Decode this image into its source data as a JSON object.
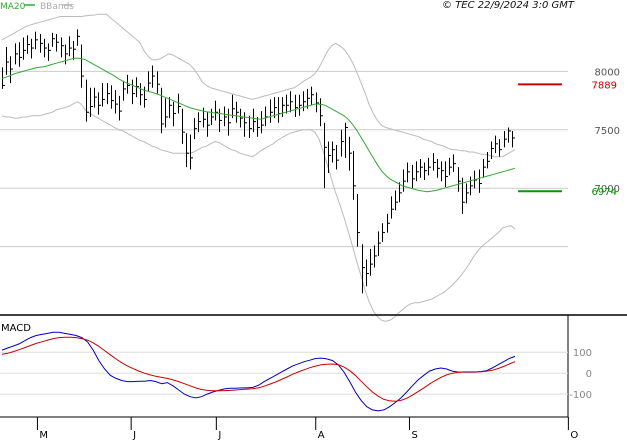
{
  "credit": "© TEC 22/9/2024 3:0 GMT",
  "legend": {
    "ma_label": "MA20",
    "ma_color": "#33aa33",
    "bb_label": "BBands",
    "bb_color": "#bbbbbb"
  },
  "chart_data": [
    {
      "type": "bar",
      "subtype": "ohlc",
      "name": "price",
      "ylim": [
        6000,
        8500
      ],
      "y_ticks": [
        {
          "value": 8000,
          "label": "8000"
        },
        {
          "value": 7500,
          "label": "7500"
        },
        {
          "value": 7000,
          "label": "7000"
        }
      ],
      "x_ticks": [
        {
          "x": 0.065,
          "label": "M"
        },
        {
          "x": 0.23,
          "label": "J"
        },
        {
          "x": 0.38,
          "label": "J"
        },
        {
          "x": 0.555,
          "label": "A"
        },
        {
          "x": 0.72,
          "label": "S"
        },
        {
          "x": 0.91,
          "label": "O"
        }
      ],
      "price_bars": [
        [
          7880,
          8035,
          7850
        ],
        [
          8080,
          8210,
          7970
        ],
        [
          8020,
          8130,
          7900
        ],
        [
          8150,
          8240,
          8060
        ],
        [
          8120,
          8250,
          8040
        ],
        [
          8180,
          8290,
          8100
        ],
        [
          8230,
          8310,
          8150
        ],
        [
          8200,
          8280,
          8110
        ],
        [
          8270,
          8340,
          8190
        ],
        [
          8240,
          8320,
          8160
        ],
        [
          8200,
          8280,
          8120
        ],
        [
          8180,
          8240,
          8090
        ],
        [
          8280,
          8330,
          8210
        ],
        [
          8250,
          8320,
          8170
        ],
        [
          8220,
          8290,
          8120
        ],
        [
          8150,
          8230,
          8060
        ],
        [
          8200,
          8300,
          8130
        ],
        [
          8190,
          8260,
          8100
        ],
        [
          8300,
          8360,
          8220
        ],
        [
          7960,
          8230,
          7860
        ],
        [
          7650,
          7930,
          7570
        ],
        [
          7700,
          7860,
          7610
        ],
        [
          7780,
          7860,
          7690
        ],
        [
          7710,
          7820,
          7630
        ],
        [
          7760,
          7900,
          7700
        ],
        [
          7810,
          7900,
          7720
        ],
        [
          7750,
          7880,
          7680
        ],
        [
          7720,
          7840,
          7640
        ],
        [
          7660,
          7790,
          7580
        ],
        [
          7850,
          7920,
          7750
        ],
        [
          7880,
          7970,
          7810
        ],
        [
          7810,
          7930,
          7720
        ],
        [
          7870,
          7950,
          7780
        ],
        [
          7800,
          7900,
          7710
        ],
        [
          7760,
          7870,
          7690
        ],
        [
          7900,
          8000,
          7830
        ],
        [
          7960,
          8050,
          7860
        ],
        [
          7890,
          8000,
          7810
        ],
        [
          7550,
          7860,
          7470
        ],
        [
          7610,
          7770,
          7520
        ],
        [
          7710,
          7780,
          7600
        ],
        [
          7640,
          7740,
          7530
        ],
        [
          7700,
          7810,
          7640
        ],
        [
          7480,
          7680,
          7380
        ],
        [
          7300,
          7470,
          7180
        ],
        [
          7260,
          7460,
          7160
        ],
        [
          7510,
          7600,
          7420
        ],
        [
          7570,
          7650,
          7480
        ],
        [
          7590,
          7690,
          7520
        ],
        [
          7540,
          7650,
          7440
        ],
        [
          7610,
          7680,
          7540
        ],
        [
          7650,
          7750,
          7580
        ],
        [
          7580,
          7680,
          7480
        ],
        [
          7610,
          7700,
          7530
        ],
        [
          7560,
          7680,
          7450
        ],
        [
          7680,
          7800,
          7600
        ],
        [
          7650,
          7740,
          7560
        ],
        [
          7600,
          7680,
          7520
        ],
        [
          7560,
          7650,
          7440
        ],
        [
          7510,
          7620,
          7430
        ],
        [
          7570,
          7680,
          7480
        ],
        [
          7520,
          7610,
          7440
        ],
        [
          7540,
          7660,
          7470
        ],
        [
          7610,
          7700,
          7530
        ],
        [
          7650,
          7760,
          7560
        ],
        [
          7690,
          7780,
          7600
        ],
        [
          7640,
          7780,
          7560
        ],
        [
          7710,
          7780,
          7610
        ],
        [
          7710,
          7800,
          7640
        ],
        [
          7740,
          7830,
          7650
        ],
        [
          7690,
          7800,
          7610
        ],
        [
          7710,
          7800,
          7620
        ],
        [
          7740,
          7830,
          7660
        ],
        [
          7770,
          7850,
          7680
        ],
        [
          7800,
          7870,
          7710
        ],
        [
          7730,
          7820,
          7650
        ],
        [
          7620,
          7770,
          7530
        ],
        [
          7350,
          7560,
          7000
        ],
        [
          7280,
          7400,
          7130
        ],
        [
          7330,
          7400,
          7220
        ],
        [
          7240,
          7370,
          7160
        ],
        [
          7400,
          7500,
          7270
        ],
        [
          7520,
          7560,
          7260
        ],
        [
          7300,
          7440,
          7150
        ],
        [
          7020,
          7320,
          6900
        ],
        [
          6620,
          6950,
          6500
        ],
        [
          6320,
          6520,
          6100
        ],
        [
          6270,
          6390,
          6160
        ],
        [
          6350,
          6480,
          6250
        ],
        [
          6420,
          6510,
          6320
        ],
        [
          6530,
          6630,
          6420
        ],
        [
          6620,
          6700,
          6540
        ],
        [
          6700,
          6780,
          6620
        ],
        [
          6820,
          6930,
          6740
        ],
        [
          6880,
          6980,
          6810
        ],
        [
          6960,
          7050,
          6880
        ],
        [
          7060,
          7160,
          6970
        ],
        [
          7140,
          7220,
          7050
        ],
        [
          7080,
          7200,
          7000
        ],
        [
          7140,
          7230,
          7060
        ],
        [
          7180,
          7250,
          7090
        ],
        [
          7150,
          7220,
          7070
        ],
        [
          7180,
          7260,
          7110
        ],
        [
          7220,
          7300,
          7150
        ],
        [
          7170,
          7250,
          7090
        ],
        [
          7150,
          7230,
          7060
        ],
        [
          7100,
          7230,
          7010
        ],
        [
          7180,
          7260,
          7110
        ],
        [
          7210,
          7290,
          7140
        ],
        [
          7060,
          7180,
          6970
        ],
        [
          6880,
          7090,
          6780
        ],
        [
          6960,
          7040,
          6870
        ],
        [
          7020,
          7100,
          6940
        ],
        [
          7070,
          7150,
          7000
        ],
        [
          7040,
          7160,
          6960
        ],
        [
          7180,
          7250,
          7090
        ],
        [
          7230,
          7310,
          7170
        ],
        [
          7340,
          7400,
          7250
        ],
        [
          7380,
          7450,
          7300
        ],
        [
          7330,
          7420,
          7270
        ],
        [
          7420,
          7490,
          7350
        ],
        [
          7490,
          7520,
          7390
        ],
        [
          7430,
          7490,
          7350
        ]
      ],
      "ma20": [
        7940,
        7950,
        7965,
        7980,
        7990,
        8000,
        8010,
        8020,
        8030,
        8035,
        8040,
        8050,
        8060,
        8070,
        8080,
        8090,
        8100,
        8110,
        8115,
        8110,
        8100,
        8080,
        8060,
        8040,
        8020,
        8000,
        7980,
        7960,
        7935,
        7915,
        7900,
        7885,
        7870,
        7855,
        7840,
        7830,
        7820,
        7810,
        7795,
        7780,
        7765,
        7750,
        7735,
        7720,
        7705,
        7690,
        7680,
        7670,
        7662,
        7655,
        7650,
        7645,
        7640,
        7635,
        7630,
        7625,
        7620,
        7615,
        7610,
        7605,
        7600,
        7595,
        7590,
        7600,
        7610,
        7620,
        7630,
        7640,
        7650,
        7660,
        7670,
        7680,
        7690,
        7700,
        7710,
        7720,
        7720,
        7715,
        7700,
        7680,
        7660,
        7640,
        7620,
        7590,
        7550,
        7500,
        7440,
        7380,
        7320,
        7260,
        7200,
        7150,
        7110,
        7080,
        7060,
        7040,
        7020,
        7010,
        7000,
        6990,
        6980,
        6975,
        6970,
        6975,
        6980,
        6990,
        7000,
        7010,
        7020,
        7030,
        7040,
        7050,
        7060,
        7070,
        7080,
        7090,
        7100,
        7110,
        7120,
        7130,
        7140,
        7150,
        7160,
        7170
      ],
      "bb_upper": [
        8270,
        8290,
        8310,
        8330,
        8350,
        8370,
        8390,
        8400,
        8410,
        8420,
        8430,
        8440,
        8450,
        8460,
        8470,
        8470,
        8470,
        8470,
        8470,
        8470,
        8475,
        8480,
        8480,
        8490,
        8490,
        8490,
        8460,
        8430,
        8400,
        8370,
        8340,
        8310,
        8280,
        8250,
        8180,
        8130,
        8100,
        8100,
        8110,
        8130,
        8150,
        8140,
        8120,
        8100,
        8080,
        8060,
        8020,
        7970,
        7910,
        7880,
        7860,
        7850,
        7840,
        7830,
        7820,
        7810,
        7800,
        7790,
        7780,
        7770,
        7760,
        7770,
        7780,
        7790,
        7800,
        7810,
        7820,
        7830,
        7840,
        7850,
        7860,
        7880,
        7910,
        7930,
        7950,
        7980,
        8030,
        8100,
        8170,
        8220,
        8240,
        8220,
        8190,
        8140,
        8080,
        8000,
        7910,
        7820,
        7720,
        7640,
        7580,
        7540,
        7520,
        7510,
        7500,
        7490,
        7480,
        7470,
        7460,
        7450,
        7440,
        7420,
        7410,
        7400,
        7380,
        7370,
        7360,
        7340,
        7330,
        7330,
        7320,
        7320,
        7310,
        7310,
        7300,
        7290,
        7290,
        7280,
        7270,
        7270,
        7270,
        7290,
        7310,
        7330
      ],
      "bb_lower": [
        7620,
        7610,
        7610,
        7600,
        7600,
        7610,
        7610,
        7620,
        7620,
        7620,
        7630,
        7640,
        7650,
        7670,
        7680,
        7690,
        7700,
        7720,
        7740,
        7720,
        7670,
        7640,
        7620,
        7600,
        7580,
        7560,
        7540,
        7520,
        7500,
        7490,
        7470,
        7450,
        7430,
        7410,
        7400,
        7380,
        7360,
        7350,
        7330,
        7320,
        7310,
        7300,
        7300,
        7300,
        7300,
        7300,
        7310,
        7330,
        7350,
        7360,
        7380,
        7400,
        7390,
        7370,
        7350,
        7330,
        7320,
        7300,
        7290,
        7280,
        7270,
        7290,
        7320,
        7340,
        7360,
        7380,
        7410,
        7430,
        7450,
        7470,
        7480,
        7490,
        7500,
        7500,
        7500,
        7480,
        7420,
        7320,
        7200,
        7080,
        6960,
        6860,
        6750,
        6630,
        6510,
        6380,
        6260,
        6130,
        6030,
        5950,
        5900,
        5870,
        5860,
        5870,
        5890,
        5930,
        5960,
        5990,
        6010,
        6020,
        6020,
        6030,
        6040,
        6050,
        6070,
        6090,
        6110,
        6140,
        6170,
        6210,
        6250,
        6300,
        6350,
        6410,
        6460,
        6500,
        6530,
        6560,
        6590,
        6620,
        6660,
        6670,
        6680,
        6650
      ],
      "levels": [
        {
          "value": 7889,
          "label": "7889",
          "color": "#cc0000"
        },
        {
          "value": 6974,
          "label": "6974",
          "color": "#009900"
        }
      ]
    },
    {
      "type": "line",
      "name": "MACD",
      "title": "MACD",
      "ylim": [
        -190,
        230
      ],
      "y_ticks": [
        {
          "value": 100,
          "label": "100"
        },
        {
          "value": 0,
          "label": "0"
        },
        {
          "value": -100,
          "label": "-100"
        }
      ],
      "series": [
        {
          "color": "#0000cc",
          "values": [
            110,
            120,
            130,
            140,
            155,
            170,
            180,
            185,
            190,
            195,
            195,
            190,
            185,
            180,
            170,
            150,
            110,
            60,
            20,
            -10,
            -25,
            -35,
            -40,
            -40,
            -38,
            -38,
            -35,
            -40,
            -50,
            -45,
            -60,
            -80,
            -100,
            -112,
            -118,
            -112,
            -100,
            -90,
            -82,
            -75,
            -72,
            -72,
            -70,
            -70,
            -68,
            -58,
            -40,
            -25,
            -10,
            5,
            20,
            35,
            45,
            55,
            62,
            70,
            72,
            68,
            60,
            40,
            5,
            -40,
            -90,
            -130,
            -160,
            -175,
            -180,
            -175,
            -160,
            -140,
            -118,
            -90,
            -60,
            -32,
            -10,
            10,
            20,
            25,
            20,
            10,
            5,
            5,
            5,
            5,
            8,
            12,
            25,
            40,
            55,
            70,
            80
          ]
        },
        {
          "color": "#cc0000",
          "values": [
            90,
            95,
            103,
            112,
            122,
            132,
            142,
            150,
            158,
            165,
            170,
            172,
            172,
            170,
            165,
            158,
            145,
            128,
            108,
            88,
            68,
            50,
            35,
            22,
            10,
            0,
            -8,
            -15,
            -20,
            -25,
            -32,
            -40,
            -50,
            -60,
            -70,
            -78,
            -82,
            -84,
            -84,
            -83,
            -82,
            -80,
            -78,
            -76,
            -74,
            -70,
            -62,
            -52,
            -42,
            -30,
            -18,
            -5,
            6,
            16,
            26,
            34,
            40,
            43,
            44,
            40,
            30,
            12,
            -10,
            -38,
            -65,
            -90,
            -110,
            -125,
            -132,
            -134,
            -130,
            -120,
            -105,
            -88,
            -70,
            -52,
            -35,
            -20,
            -8,
            0,
            4,
            6,
            6,
            6,
            7,
            9,
            14,
            22,
            32,
            44,
            55
          ]
        }
      ]
    }
  ]
}
